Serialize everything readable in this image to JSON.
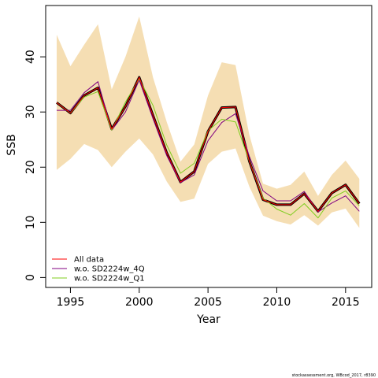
{
  "chart_data": {
    "type": "line",
    "title": "",
    "xlabel": "Year",
    "ylabel": "SSB",
    "xlim": [
      1993.2,
      2016.9
    ],
    "ylim": [
      -1.8,
      49.3
    ],
    "xticks": [
      1995,
      2000,
      2005,
      2010,
      2015
    ],
    "yticks": [
      0,
      10,
      20,
      30,
      40
    ],
    "grid": false,
    "legend_position": "bottom-left",
    "x": [
      1994,
      1995,
      1996,
      1997,
      1998,
      1999,
      2000,
      2001,
      2002,
      2003,
      2004,
      2005,
      2006,
      2007,
      2008,
      2009,
      2010,
      2011,
      2012,
      2013,
      2014,
      2015,
      2016
    ],
    "confidence_band": {
      "color": "#f5deb3",
      "lower": [
        19.5,
        21.5,
        24.2,
        23.1,
        20.0,
        22.8,
        25.2,
        22.3,
        17.4,
        13.7,
        14.3,
        20.6,
        22.8,
        23.4,
        16.5,
        11.2,
        10.2,
        9.6,
        11.3,
        9.4,
        11.8,
        12.5,
        9.0
      ],
      "upper": [
        44.0,
        38.3,
        42.2,
        45.9,
        34.1,
        40.0,
        47.3,
        36.3,
        28.2,
        21.0,
        24.1,
        33.0,
        39.0,
        38.5,
        25.9,
        17.0,
        16.1,
        16.8,
        19.2,
        14.8,
        18.6,
        21.2,
        17.9
      ]
    },
    "series": [
      {
        "name": "All data",
        "color": "#ff0000",
        "values": [
          31.7,
          29.8,
          33.0,
          34.4,
          26.9,
          31.0,
          36.3,
          29.4,
          22.6,
          17.3,
          19.2,
          26.5,
          30.8,
          30.9,
          21.1,
          14.1,
          13.2,
          13.2,
          15.2,
          12.0,
          15.3,
          16.8,
          13.4
        ]
      },
      {
        "name": "w.o. SD2224w_4Q",
        "color": "#800080",
        "values": [
          30.3,
          30.3,
          33.5,
          35.5,
          26.7,
          30.0,
          35.8,
          28.8,
          22.1,
          17.2,
          18.6,
          24.8,
          28.1,
          29.7,
          22.0,
          15.7,
          13.9,
          13.9,
          15.6,
          11.9,
          13.5,
          14.8,
          12.0
        ]
      },
      {
        "name": "w.o. SD2224w_Q1",
        "color": "#7fcd1f",
        "values": [
          31.7,
          29.8,
          32.7,
          33.7,
          26.7,
          31.8,
          36.0,
          31.2,
          24.0,
          18.9,
          20.7,
          26.6,
          28.7,
          28.2,
          21.1,
          14.4,
          12.4,
          11.3,
          13.4,
          10.8,
          14.4,
          15.7,
          13.0
        ]
      }
    ],
    "black_line": [
      31.7,
      29.8,
      33.0,
      34.4,
      26.9,
      31.0,
      36.3,
      29.4,
      22.6,
      17.3,
      19.2,
      26.5,
      30.8,
      30.9,
      21.1,
      14.1,
      13.2,
      13.2,
      15.2,
      12.0,
      15.3,
      16.8,
      13.4
    ],
    "footnote": "stockassessment.org,  WBcod_2017,  r8390"
  }
}
